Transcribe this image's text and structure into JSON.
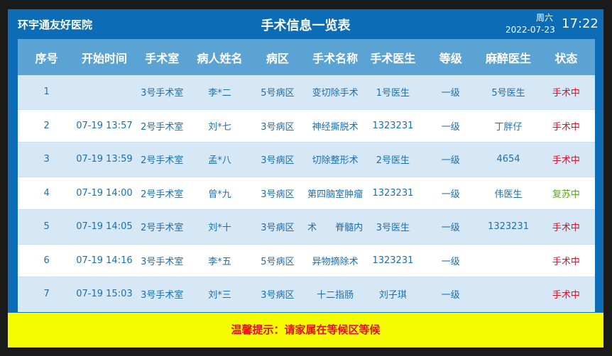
{
  "header": {
    "hospital": "环宇通友好医院",
    "title": "手术信息一览表",
    "weekday": "周六",
    "date": "2022-07-23",
    "time": "17:22"
  },
  "columns": [
    "序号",
    "开始时间",
    "手术室",
    "病人姓名",
    "病区",
    "手术名称",
    "手术医生",
    "等级",
    "麻醉医生",
    "状态"
  ],
  "rows": [
    [
      "1",
      "",
      "3号手术室",
      "李*二",
      "5号病区",
      "变切除手术",
      "1号医生",
      "一级",
      "5号医生",
      "手术中"
    ],
    [
      "2",
      "07-19 13:57",
      "2号手术室",
      "刘*七",
      "3号病区",
      "神经撕脱术",
      "1323231",
      "一级",
      "丁胖仔",
      "手术中"
    ],
    [
      "3",
      "07-19 13:59",
      "2号手术室",
      "孟*八",
      "3号病区",
      "切除整形术",
      "2号医生",
      "一级",
      "4654",
      "手术中"
    ],
    [
      "4",
      "07-19 14:00",
      "2号手术室",
      "曾*九",
      "3号病区",
      "第四脑室肿瘤",
      "1323231",
      "一级",
      "伟医生",
      "复苏中"
    ],
    [
      "5",
      "07-19 14:05",
      "2号手术室",
      "刘*十",
      "3号病区",
      "术　　脊髓内",
      "3号医生",
      "一级",
      "1323231",
      "手术中"
    ],
    [
      "6",
      "07-19 14:16",
      "3号手术室",
      "李*五",
      "5号病区",
      "异物摘除术",
      "1323231",
      "一级",
      "",
      "手术中"
    ],
    [
      "7",
      "07-19 15:03",
      "3号手术室",
      "刘*三",
      "3号病区",
      "十二指肠",
      "刘子琪",
      "一级",
      "",
      "手术中"
    ]
  ],
  "tip": "温馨提示：请家属在等候区等候",
  "colors": {
    "surgery": "#e0102a",
    "recovery": "#5aa31c",
    "header": "#0c6cb5",
    "tip_bg": "#f5fb00"
  }
}
